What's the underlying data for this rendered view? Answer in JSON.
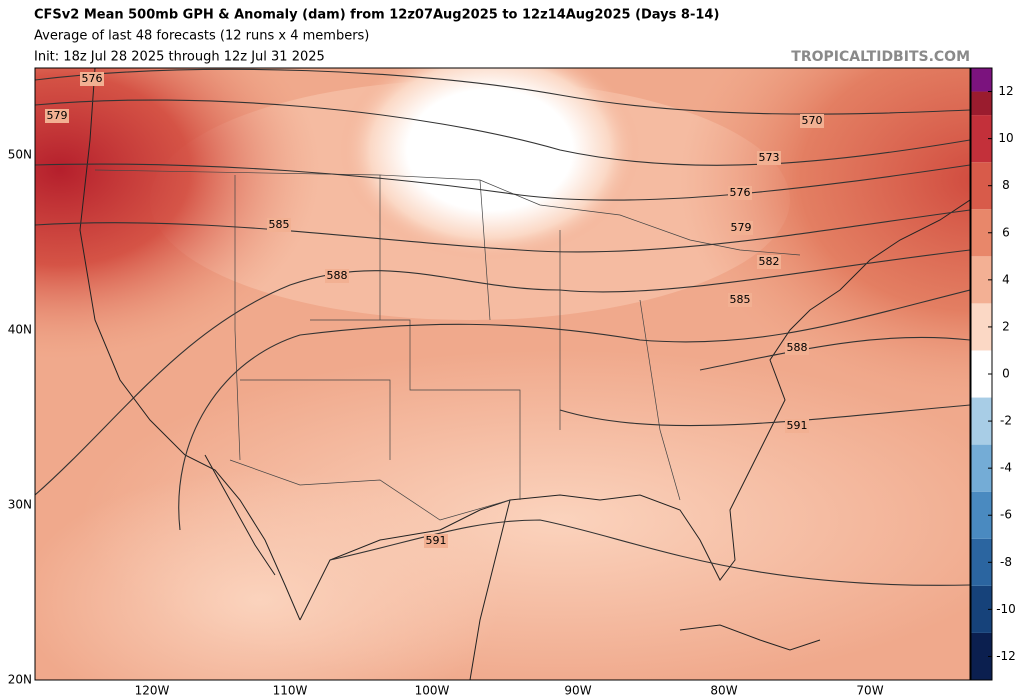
{
  "header": {
    "title": "CFSv2 Mean 500mb GPH & Anomaly (dam) from 12z07Aug2025 to 12z14Aug2025 (Days 8-14)",
    "subtitle": "Average of last 48 forecasts (12 runs x 4 members)",
    "init": "Init: 18z Jul 28 2025 through 12z Jul 31 2025",
    "watermark": "TROPICALTIDBITS.COM"
  },
  "map": {
    "lat_labels": [
      "50N",
      "40N",
      "30N",
      "20N"
    ],
    "lon_labels": [
      "120W",
      "110W",
      "100W",
      "90W",
      "80W",
      "70W"
    ],
    "contour_labels": [
      "576",
      "579",
      "585",
      "588",
      "570",
      "573",
      "576",
      "579",
      "582",
      "585",
      "588",
      "591",
      "591"
    ]
  },
  "colorbar": {
    "lim": [
      -13,
      13
    ],
    "ticks": [
      12,
      10,
      8,
      6,
      4,
      2,
      0,
      -2,
      -4,
      -6,
      -8,
      -10,
      -12
    ],
    "levels": [
      -13,
      -11,
      -9,
      -7,
      -5,
      -3,
      -1,
      1,
      3,
      5,
      7,
      9,
      11,
      12,
      13
    ],
    "colors": [
      "#0b1f4f",
      "#16427a",
      "#2b65a0",
      "#4a8ac0",
      "#74acd6",
      "#a8cde6",
      "#ffffff",
      "#fbd8c5",
      "#f3b094",
      "#e8876a",
      "#d85b4a",
      "#c3303a",
      "#9a1c2e",
      "#7b137e"
    ]
  }
}
